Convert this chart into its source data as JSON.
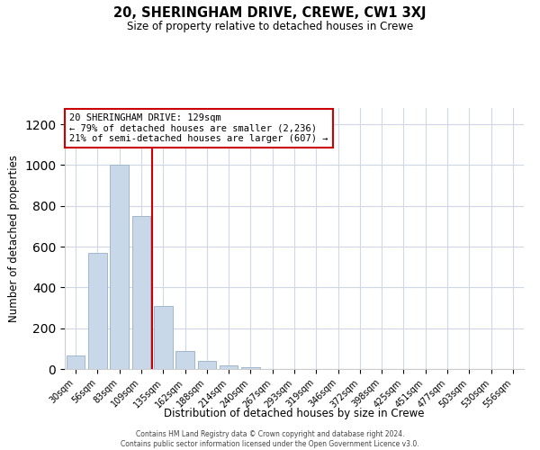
{
  "title": "20, SHERINGHAM DRIVE, CREWE, CW1 3XJ",
  "subtitle": "Size of property relative to detached houses in Crewe",
  "xlabel": "Distribution of detached houses by size in Crewe",
  "ylabel": "Number of detached properties",
  "bar_labels": [
    "30sqm",
    "56sqm",
    "83sqm",
    "109sqm",
    "135sqm",
    "162sqm",
    "188sqm",
    "214sqm",
    "240sqm",
    "267sqm",
    "293sqm",
    "319sqm",
    "346sqm",
    "372sqm",
    "398sqm",
    "425sqm",
    "451sqm",
    "477sqm",
    "503sqm",
    "530sqm",
    "556sqm"
  ],
  "bar_values": [
    65,
    570,
    1000,
    750,
    310,
    90,
    38,
    18,
    10,
    0,
    0,
    0,
    0,
    0,
    0,
    0,
    0,
    0,
    0,
    0,
    0
  ],
  "bar_color": "#c8d8e8",
  "bar_edge_color": "#a0b8cc",
  "vline_color": "#cc0000",
  "ylim": [
    0,
    1280
  ],
  "yticks": [
    0,
    200,
    400,
    600,
    800,
    1000,
    1200
  ],
  "annotation_title": "20 SHERINGHAM DRIVE: 129sqm",
  "annotation_line1": "← 79% of detached houses are smaller (2,236)",
  "annotation_line2": "21% of semi-detached houses are larger (607) →",
  "annotation_box_color": "#cc0000",
  "footer_line1": "Contains HM Land Registry data © Crown copyright and database right 2024.",
  "footer_line2": "Contains public sector information licensed under the Open Government Licence v3.0.",
  "background_color": "#ffffff",
  "grid_color": "#d0d8e8"
}
